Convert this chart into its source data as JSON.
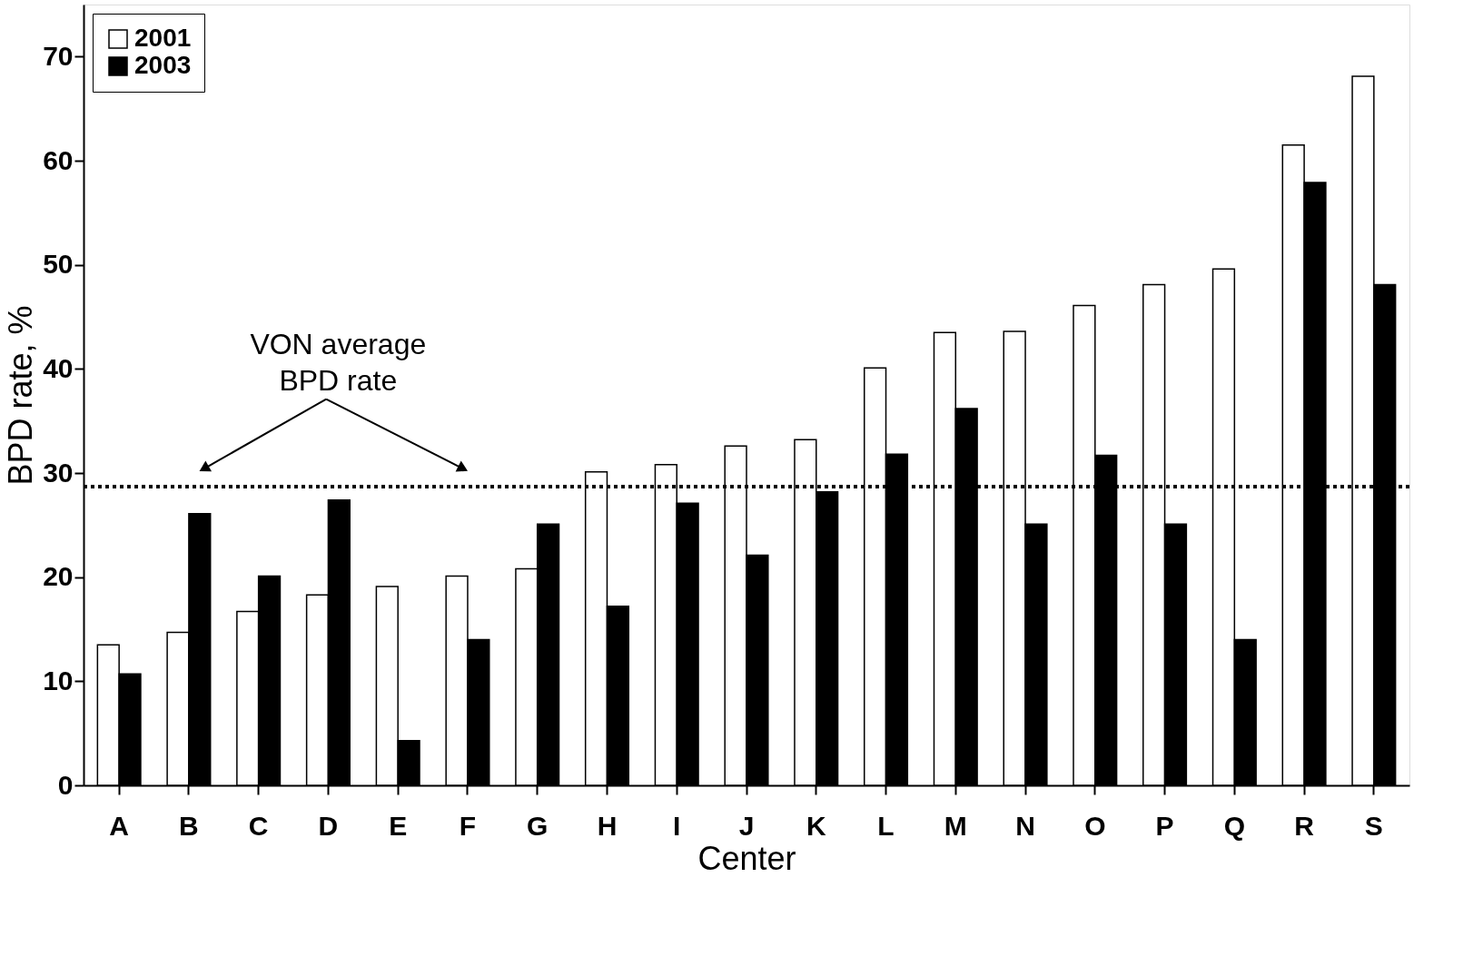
{
  "chart_data": {
    "type": "bar",
    "categories": [
      "A",
      "B",
      "C",
      "D",
      "E",
      "F",
      "G",
      "H",
      "I",
      "J",
      "K",
      "L",
      "M",
      "N",
      "O",
      "P",
      "Q",
      "R",
      "S"
    ],
    "series": [
      {
        "name": "2001",
        "color": "#ffffff",
        "values": [
          13.5,
          14.7,
          16.7,
          18.3,
          19.1,
          20.1,
          20.8,
          30.1,
          30.8,
          32.6,
          33.2,
          40.1,
          43.5,
          43.6,
          46.1,
          48.1,
          49.6,
          61.5,
          68.1
        ]
      },
      {
        "name": "2003",
        "color": "#000000",
        "values": [
          10.7,
          26.1,
          20.1,
          27.4,
          4.3,
          14.0,
          25.1,
          17.2,
          27.1,
          22.1,
          28.2,
          31.8,
          36.2,
          25.1,
          31.7,
          25.1,
          14.0,
          57.9,
          48.1
        ]
      }
    ],
    "xlabel": "Center",
    "ylabel": "BPD rate, %",
    "ylim": [
      0,
      75
    ],
    "yticks": [
      0,
      10,
      20,
      30,
      40,
      50,
      60,
      70
    ],
    "ref_lines": [
      {
        "axis": "y",
        "value": 28.7,
        "line_style": "dotted",
        "color": "#000000"
      }
    ],
    "annotations": [
      "VON average BPD rate"
    ],
    "legend": "top left",
    "grid": false
  }
}
